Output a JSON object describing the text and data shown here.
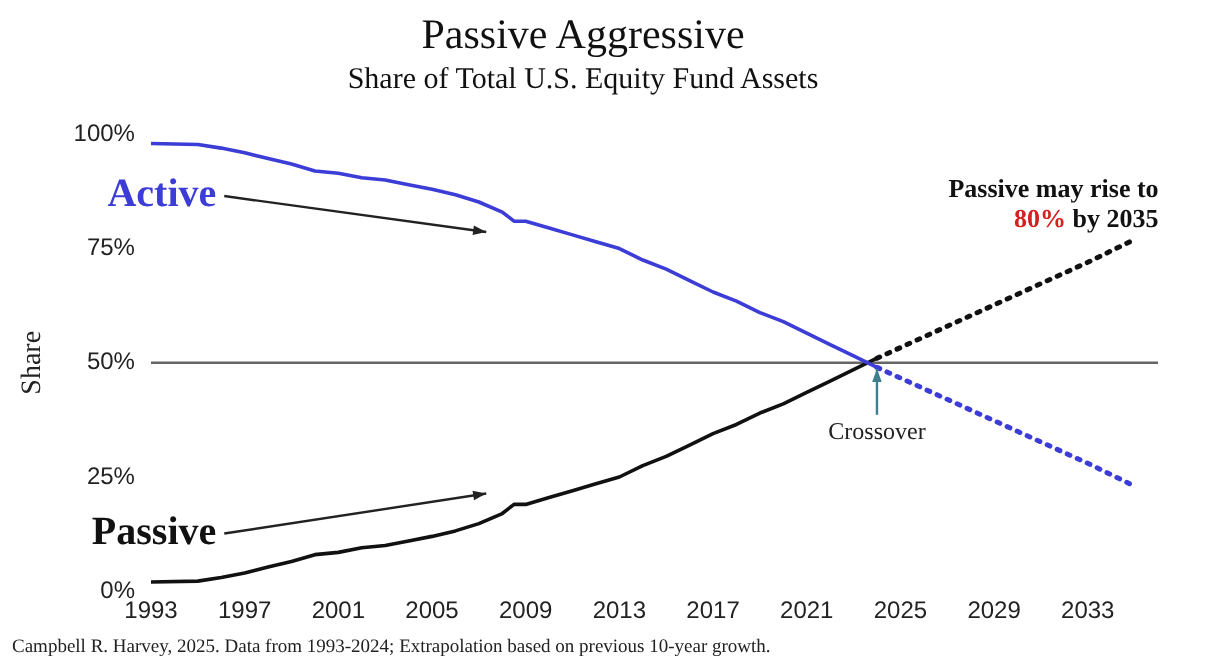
{
  "chart_data": {
    "type": "line",
    "title": "Passive Aggressive",
    "subtitle": "Share of Total U.S. Equity Fund Assets",
    "ylabel": "Share",
    "xlim": [
      1993,
      2036
    ],
    "xticks": [
      1993,
      1997,
      2001,
      2005,
      2009,
      2013,
      2017,
      2021,
      2025,
      2029,
      2033
    ],
    "ylim": [
      0,
      100
    ],
    "yticks": [
      {
        "value": 0,
        "label": "0%"
      },
      {
        "value": 25,
        "label": "25%"
      },
      {
        "value": 50,
        "label": "50%"
      },
      {
        "value": 75,
        "label": "75%"
      },
      {
        "value": 100,
        "label": "100%"
      }
    ],
    "grid": false,
    "legend": false,
    "marker": "none",
    "series": [
      {
        "name": "Active",
        "color": "#3c3cd6",
        "line_style": "solid",
        "x": [
          1993,
          1995,
          1996,
          1997,
          1998,
          1999,
          2000,
          2001,
          2002,
          2003,
          2004,
          2005,
          2006,
          2007,
          2008,
          2008.5,
          2009,
          2010,
          2011,
          2012,
          2013,
          2014,
          2015,
          2016,
          2017,
          2018,
          2019,
          2020,
          2021,
          2022,
          2023,
          2024
        ],
        "values": [
          98,
          97.8,
          97,
          96,
          94.7,
          93.5,
          92,
          91.5,
          90.5,
          90,
          89,
          88,
          86.8,
          85.2,
          83,
          81,
          81,
          79.5,
          78,
          76.5,
          75,
          72.5,
          70.5,
          68,
          65.5,
          63.5,
          61,
          59,
          56.5,
          54,
          51.5,
          49
        ]
      },
      {
        "name": "Passive",
        "color": "#111111",
        "line_style": "solid",
        "x": [
          1993,
          1995,
          1996,
          1997,
          1998,
          1999,
          2000,
          2001,
          2002,
          2003,
          2004,
          2005,
          2006,
          2007,
          2008,
          2008.5,
          2009,
          2010,
          2011,
          2012,
          2013,
          2014,
          2015,
          2016,
          2017,
          2018,
          2019,
          2020,
          2021,
          2022,
          2023,
          2024
        ],
        "values": [
          2,
          2.2,
          3,
          4,
          5.3,
          6.5,
          8,
          8.5,
          9.5,
          10,
          11,
          12,
          13.2,
          14.8,
          17,
          19,
          19,
          20.5,
          22,
          23.5,
          25,
          27.5,
          29.5,
          32,
          34.5,
          36.5,
          39,
          41,
          43.5,
          46,
          48.5,
          51
        ]
      },
      {
        "color": "#3c3cd6",
        "line_style": "dotted",
        "x": [
          2024,
          2027,
          2030,
          2033,
          2035
        ],
        "values": [
          49,
          42,
          35,
          28,
          23
        ]
      },
      {
        "color": "#111111",
        "line_style": "dotted",
        "x": [
          2024,
          2027,
          2030,
          2033,
          2035
        ],
        "values": [
          51,
          58,
          65,
          72,
          77
        ]
      }
    ],
    "ref_lines": [
      {
        "axis": "y",
        "value": 50,
        "color": "#666666"
      }
    ],
    "annotations": [
      {
        "text": "Crossover",
        "x": 2024,
        "y": 50
      },
      {
        "text": "Passive may rise to 80% by 2035",
        "x": 2035,
        "y": 77
      },
      "Campbell R. Harvey, 2025. Data from 1993-2024; Extrapolation based on previous 10-year growth."
    ]
  }
}
